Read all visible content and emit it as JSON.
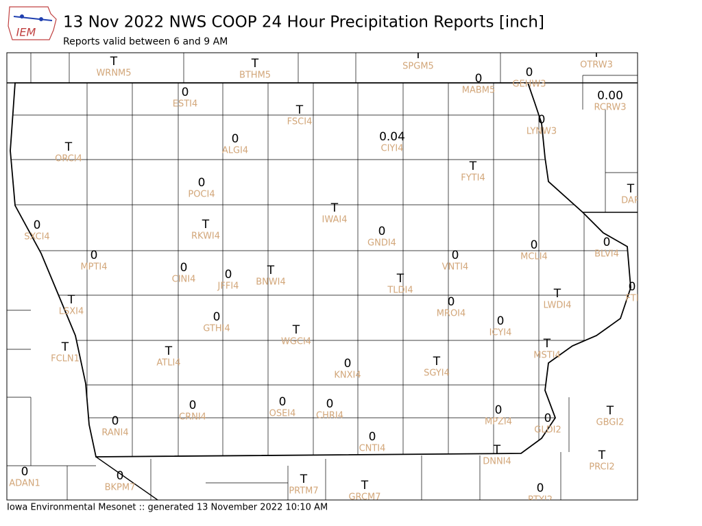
{
  "header": {
    "logo": "IEM",
    "title": "13 Nov 2022 NWS COOP 24 Hour Precipitation Reports [inch]",
    "subtitle": "Reports valid between 6 and 9 AM"
  },
  "stations": [
    {
      "id": "WRNM5",
      "value": "T"
    },
    {
      "id": "BTHM5",
      "value": "T"
    },
    {
      "id": "SPGM5",
      "value": "T"
    },
    {
      "id": "OTRW3",
      "value": "T"
    },
    {
      "id": "MABM5",
      "value": "0"
    },
    {
      "id": "GEHW3",
      "value": "0"
    },
    {
      "id": "ESTI4",
      "value": "0"
    },
    {
      "id": "RCRW3",
      "value": "0.00"
    },
    {
      "id": "FSCI4",
      "value": "T"
    },
    {
      "id": "LYNW3",
      "value": "0"
    },
    {
      "id": "ORCI4",
      "value": "T"
    },
    {
      "id": "ALGI4",
      "value": "0"
    },
    {
      "id": "CIYI4",
      "value": "0.04"
    },
    {
      "id": "FYTI4",
      "value": "T"
    },
    {
      "id": "POCI4",
      "value": "0"
    },
    {
      "id": "DAR",
      "value": "T"
    },
    {
      "id": "IWAI4",
      "value": "T"
    },
    {
      "id": "SXCI4",
      "value": "0"
    },
    {
      "id": "RKWI4",
      "value": "T"
    },
    {
      "id": "GNDI4",
      "value": "0"
    },
    {
      "id": "MCLI4",
      "value": "0"
    },
    {
      "id": "BLVI4",
      "value": "0"
    },
    {
      "id": "MPTI4",
      "value": "0"
    },
    {
      "id": "VNTI4",
      "value": "0"
    },
    {
      "id": "CINI4",
      "value": "0"
    },
    {
      "id": "JFFI4",
      "value": "0"
    },
    {
      "id": "BNWI4",
      "value": "T"
    },
    {
      "id": "TLDI4",
      "value": "T"
    },
    {
      "id": "FTI",
      "value": "0"
    },
    {
      "id": "LSXI4",
      "value": "T"
    },
    {
      "id": "MROI4",
      "value": "0"
    },
    {
      "id": "LWDI4",
      "value": "T"
    },
    {
      "id": "GTHI4",
      "value": "0"
    },
    {
      "id": "ICYI4",
      "value": "0"
    },
    {
      "id": "WGCI4",
      "value": "T"
    },
    {
      "id": "FCLN1",
      "value": "T"
    },
    {
      "id": "MSTI4",
      "value": "T"
    },
    {
      "id": "ATLI4",
      "value": "T"
    },
    {
      "id": "KNXI4",
      "value": "0"
    },
    {
      "id": "SGYI4",
      "value": "T"
    },
    {
      "id": "OSEI4",
      "value": "0"
    },
    {
      "id": "CHRI4",
      "value": "0"
    },
    {
      "id": "CRNI4",
      "value": "0"
    },
    {
      "id": "MPZI4",
      "value": "0"
    },
    {
      "id": "GBGI2",
      "value": "T"
    },
    {
      "id": "RANI4",
      "value": "0"
    },
    {
      "id": "GLDI2",
      "value": "0"
    },
    {
      "id": "CNTI4",
      "value": "0"
    },
    {
      "id": "DNNI4",
      "value": "T"
    },
    {
      "id": "PRCI2",
      "value": "T"
    },
    {
      "id": "ADAN1",
      "value": "0"
    },
    {
      "id": "BKPM7",
      "value": "0"
    },
    {
      "id": "PRTM7",
      "value": "T"
    },
    {
      "id": "GRCM7",
      "value": "T"
    },
    {
      "id": "RTYI2",
      "value": "0"
    }
  ],
  "footer": "Iowa Environmental Mesonet :: generated 13 November 2022 10:10 AM"
}
